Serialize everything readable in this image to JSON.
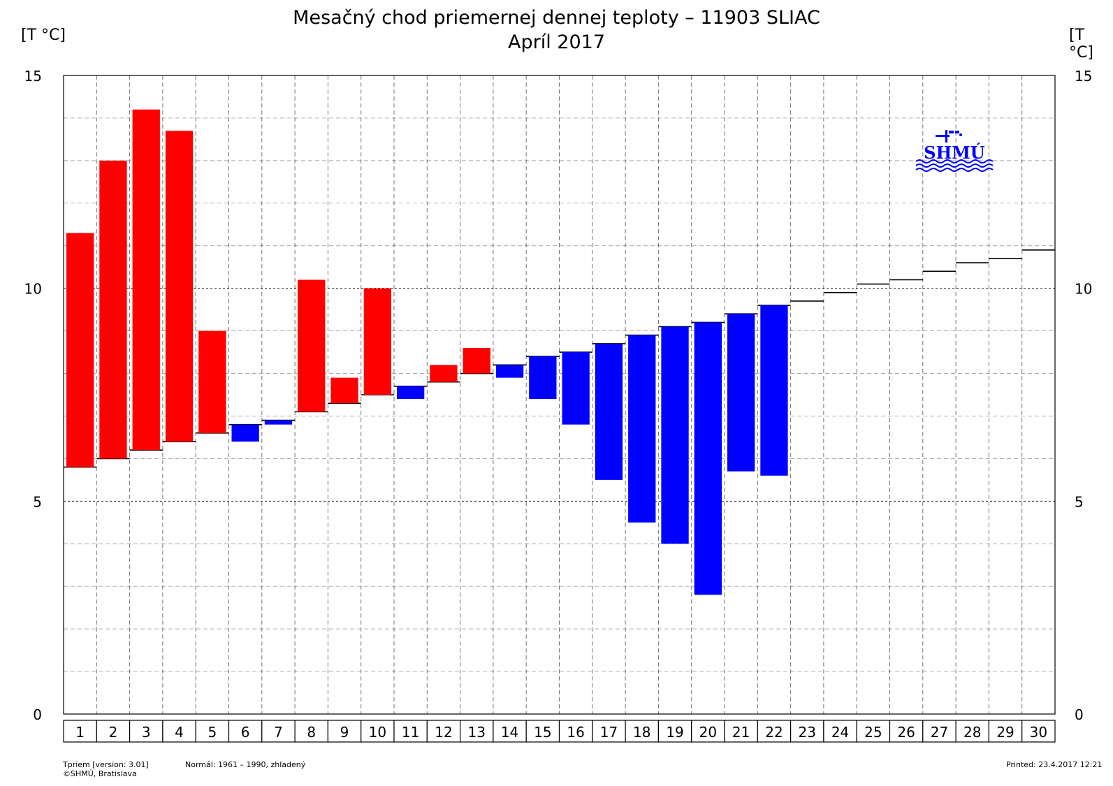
{
  "chart_data": {
    "type": "bar",
    "title": "Mesačný chod priemernej dennej teploty – 11903 SLIAC",
    "subtitle": "Apríl 2017",
    "ylabel_left": "[T °C]",
    "ylabel_right": "[T °C]",
    "ylim": [
      0,
      15
    ],
    "yticks": [
      0,
      5,
      10,
      15
    ],
    "grid": true,
    "categories": [
      "1",
      "2",
      "3",
      "4",
      "5",
      "6",
      "7",
      "8",
      "9",
      "10",
      "11",
      "12",
      "13",
      "14",
      "15",
      "16",
      "17",
      "18",
      "19",
      "20",
      "21",
      "22",
      "23",
      "24",
      "25",
      "26",
      "27",
      "28",
      "29",
      "30"
    ],
    "series": [
      {
        "name": "",
        "color": "#000000",
        "values": [
          5.8,
          6.0,
          6.2,
          6.4,
          6.6,
          6.8,
          6.9,
          7.1,
          7.3,
          7.5,
          7.7,
          7.8,
          8.0,
          8.2,
          8.4,
          8.5,
          8.7,
          8.9,
          9.1,
          9.2,
          9.4,
          9.6,
          9.7,
          9.9,
          10.1,
          10.2,
          10.4,
          10.6,
          10.7,
          10.9
        ]
      },
      {
        "name": "",
        "color": "#ff0000/#0000ff",
        "values": [
          11.3,
          13.0,
          14.2,
          13.7,
          9.0,
          6.4,
          6.8,
          10.2,
          7.9,
          10.0,
          7.4,
          8.2,
          8.6,
          7.9,
          7.4,
          6.8,
          5.5,
          4.5,
          4.0,
          2.8,
          5.7,
          5.6,
          null,
          null,
          null,
          null,
          null,
          null,
          null,
          null
        ]
      }
    ],
    "colors": {
      "above": "#ff0000",
      "below": "#0000ff",
      "grid": "#000000"
    }
  },
  "logo": {
    "text": "SHMÚ",
    "color": "#0000ff"
  },
  "footer": {
    "version": "Tpriem [version: 3.01]",
    "copyright": "©SHMÚ, Bratislava",
    "normal": "Normál: 1961 – 1990, zhladený",
    "printed": "Printed: 23.4.2017  12:21"
  }
}
